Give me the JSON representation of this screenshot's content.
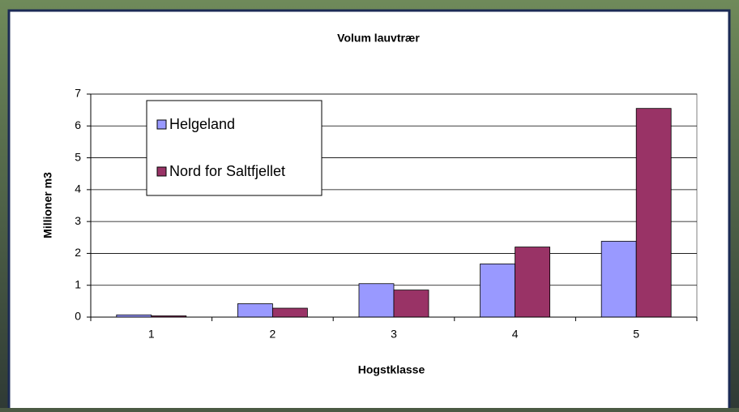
{
  "chart_data": {
    "type": "bar",
    "title": "Volum lauvtrær",
    "x_label": "Hogstklasse",
    "y_label": "Millioner m3",
    "categories": [
      "1",
      "2",
      "3",
      "4",
      "5"
    ],
    "series": [
      {
        "name": "Helgeland",
        "color": "#9999ff",
        "values": [
          0.07,
          0.42,
          1.05,
          1.67,
          2.38
        ]
      },
      {
        "name": "Nord for Saltfjellet",
        "color": "#993366",
        "values": [
          0.04,
          0.28,
          0.85,
          2.2,
          6.55
        ]
      }
    ],
    "ylim": [
      0,
      7
    ],
    "yticks": [
      0,
      1,
      2,
      3,
      4,
      5,
      6,
      7
    ],
    "grid": true,
    "legend": "upper-left"
  }
}
